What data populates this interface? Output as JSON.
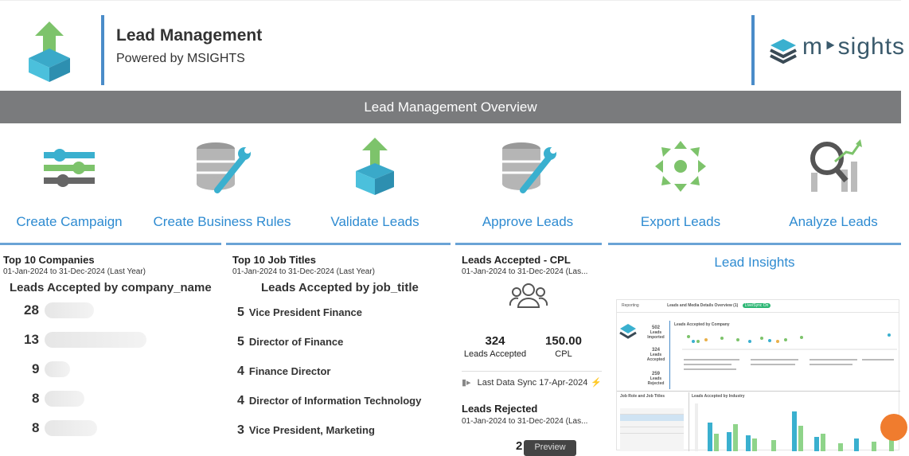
{
  "header": {
    "title": "Lead Management",
    "subtitle": "Powered by MSIGHTS",
    "brand": "m‣sights"
  },
  "overview_bar": "Lead Management Overview",
  "tiles": [
    {
      "label": "Create Campaign",
      "icon": "sliders-icon"
    },
    {
      "label": "Create Business Rules",
      "icon": "database-wrench-icon"
    },
    {
      "label": "Validate Leads",
      "icon": "box-upload-icon"
    },
    {
      "label": "Approve Leads",
      "icon": "database-wrench-icon"
    },
    {
      "label": "Export Leads",
      "icon": "export-arrows-icon"
    },
    {
      "label": "Analyze Leads",
      "icon": "magnify-chart-icon"
    }
  ],
  "companies": {
    "heading": "Top 10 Companies",
    "dates": "01-Jan-2024 to 31-Dec-2024 (Last Year)",
    "chart_title": "Leads Accepted by company_name",
    "values": [
      "28",
      "13",
      "9",
      "8",
      "8"
    ]
  },
  "jobs": {
    "heading": "Top 10 Job Titles",
    "dates": "01-Jan-2024 to 31-Dec-2024 (Last Year)",
    "chart_title": "Leads Accepted by job_title",
    "rows": [
      {
        "n": "5",
        "t": "Vice President Finance"
      },
      {
        "n": "5",
        "t": "Director of Finance"
      },
      {
        "n": "4",
        "t": "Finance Director"
      },
      {
        "n": "4",
        "t": "Director of Information Technology"
      },
      {
        "n": "3",
        "t": "Vice President, Marketing"
      }
    ]
  },
  "cpl": {
    "heading": "Leads Accepted - CPL",
    "dates": "01-Jan-2024 to 31-Dec-2024 (Las...",
    "accepted_value": "324",
    "accepted_label": "Leads Accepted",
    "cpl_value": "150.00",
    "cpl_label": "CPL",
    "sync": "Last Data Sync 17-Apr-2024",
    "rejected_heading": "Leads Rejected",
    "rejected_dates": "01-Jan-2024 to 31-Dec-2024 (Las...",
    "rejected_value": "2",
    "preview": "Preview"
  },
  "insights": {
    "title": "Lead Insights",
    "thumb": {
      "reporting": "Reporting",
      "dash_title": "Leads and Media Details Overview (1)",
      "badge": "Live/Sync On",
      "k1v": "502",
      "k1l": "Leads Imported",
      "k2v": "324",
      "k2l": "Leads Accepted",
      "k3v": "259",
      "k3l": "Leads Rejected",
      "chart1": "Leads Accepted by Company",
      "chart2": "Job Role and Job Titles",
      "chart3": "Leads Accepted by Industry"
    }
  }
}
